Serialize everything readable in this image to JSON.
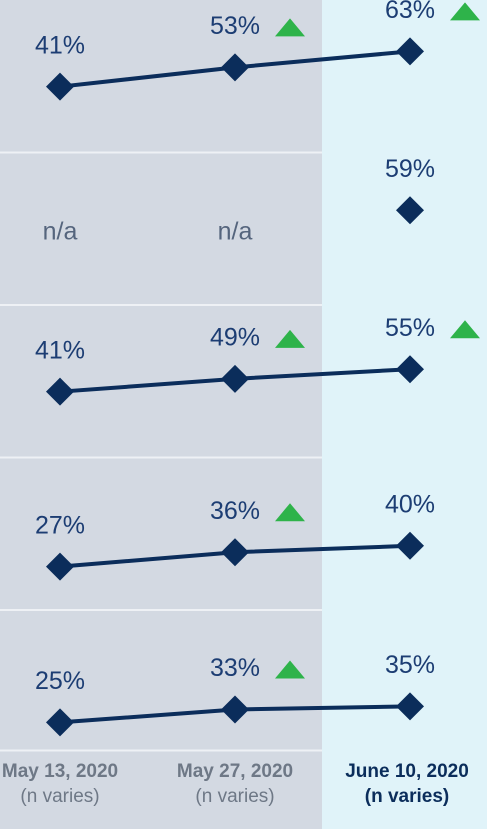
{
  "chart_data": {
    "type": "line",
    "categories": [
      "May 13, 2020",
      "May 27, 2020",
      "June 10, 2020"
    ],
    "category_notes": [
      "(n varies)",
      "(n varies)",
      "(n varies)"
    ],
    "ylim": [
      0,
      95
    ],
    "color": "#0b2d5b",
    "increase_color": "#2eb34a",
    "series": [
      {
        "values": [
          41,
          53,
          63
        ],
        "value_labels": [
          "41%",
          "53%",
          "63%"
        ],
        "increase": [
          false,
          true,
          true
        ]
      },
      {
        "values": [
          null,
          null,
          59
        ],
        "value_labels": [
          "n/a",
          "n/a",
          "59%"
        ],
        "increase": [
          false,
          false,
          false
        ]
      },
      {
        "values": [
          41,
          49,
          55
        ],
        "value_labels": [
          "41%",
          "49%",
          "55%"
        ],
        "increase": [
          false,
          true,
          true
        ]
      },
      {
        "values": [
          27,
          36,
          40
        ],
        "value_labels": [
          "27%",
          "36%",
          "40%"
        ],
        "increase": [
          false,
          true,
          false
        ]
      },
      {
        "values": [
          25,
          33,
          35
        ],
        "value_labels": [
          "25%",
          "33%",
          "35%"
        ],
        "increase": [
          false,
          true,
          false
        ]
      }
    ]
  }
}
